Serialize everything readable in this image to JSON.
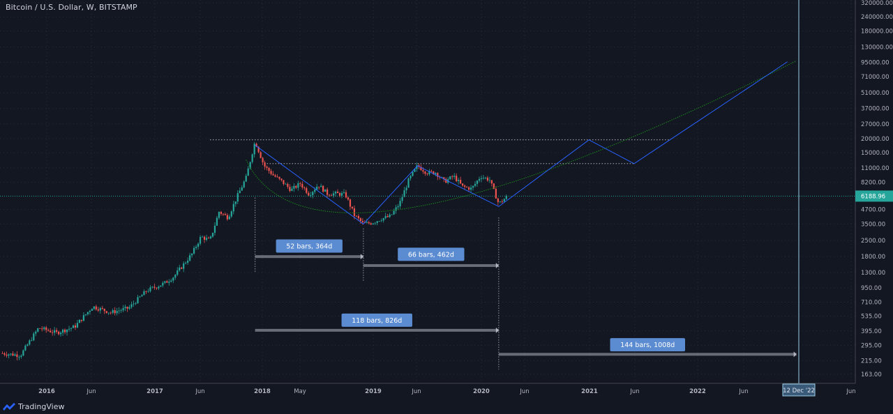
{
  "header": {
    "title": "Bitcoin / U.S. Dollar, W, BITSTAMP"
  },
  "brand": {
    "name": "TradingView"
  },
  "colors": {
    "background": "#131722",
    "grid": "#2a2e39",
    "up": "#26a69a",
    "down": "#ef5350",
    "projection": "#2962ff",
    "curve": "#1b8a1b",
    "price_line": "#26a69a",
    "label_bg": "#5b8bd0",
    "measure_bar": "#787b86",
    "axis_text": "#b2b5be",
    "cursor": "#9ccfe8"
  },
  "chart_data": {
    "type": "candlestick",
    "y_scale": "log",
    "x_ticks": [
      "2016",
      "Jun",
      "2017",
      "Jun",
      "2018",
      "May",
      "2019",
      "Jun",
      "2020",
      "Jun",
      "2021",
      "Jun",
      "2022",
      "Jun",
      "Jun"
    ],
    "y_ticks": [
      "320000.00",
      "240000.00",
      "180000.00",
      "130000.00",
      "95000.00",
      "71000.00",
      "51000.00",
      "37000.00",
      "27000.00",
      "20000.00",
      "15000.00",
      "11000.00",
      "8200.00",
      "6188.96",
      "4700.00",
      "3500.00",
      "2500.00",
      "1800.00",
      "1300.00",
      "950.00",
      "710.00",
      "535.00",
      "395.00",
      "295.00",
      "215.00",
      "163.00"
    ],
    "last_price": {
      "value": 6188.96,
      "label": "6188.96"
    },
    "cursor_date": {
      "label": "12 Dec '22"
    },
    "price_path": [
      [
        "2015-08",
        250
      ],
      [
        "2015-10",
        240
      ],
      [
        "2015-12",
        420
      ],
      [
        "2016-02",
        380
      ],
      [
        "2016-04",
        430
      ],
      [
        "2016-06",
        650
      ],
      [
        "2016-08",
        575
      ],
      [
        "2016-10",
        630
      ],
      [
        "2016-12",
        900
      ],
      [
        "2017-02",
        1050
      ],
      [
        "2017-03",
        1200
      ],
      [
        "2017-05",
        1900
      ],
      [
        "2017-06",
        2700
      ],
      [
        "2017-07",
        2500
      ],
      [
        "2017-08",
        4500
      ],
      [
        "2017-09",
        4000
      ],
      [
        "2017-10",
        6100
      ],
      [
        "2017-11",
        9000
      ],
      [
        "2017-12",
        19000
      ],
      [
        "2018-01",
        11500
      ],
      [
        "2018-02",
        9500
      ],
      [
        "2018-03",
        8300
      ],
      [
        "2018-04",
        7000
      ],
      [
        "2018-05",
        8000
      ],
      [
        "2018-06",
        6400
      ],
      [
        "2018-07",
        7800
      ],
      [
        "2018-08",
        6500
      ],
      [
        "2018-09",
        6500
      ],
      [
        "2018-10",
        6400
      ],
      [
        "2018-11",
        4200
      ],
      [
        "2018-12",
        3500
      ],
      [
        "2019-01",
        3600
      ],
      [
        "2019-02",
        3900
      ],
      [
        "2019-03",
        4100
      ],
      [
        "2019-04",
        5300
      ],
      [
        "2019-05",
        8500
      ],
      [
        "2019-06",
        11500
      ],
      [
        "2019-07",
        10000
      ],
      [
        "2019-08",
        10000
      ],
      [
        "2019-09",
        8300
      ],
      [
        "2019-10",
        9300
      ],
      [
        "2019-11",
        7500
      ],
      [
        "2019-12",
        7200
      ],
      [
        "2020-01",
        9300
      ],
      [
        "2020-02",
        8600
      ],
      [
        "2020-03",
        5300
      ],
      [
        "2020-04",
        6188.96
      ]
    ],
    "projection_path": [
      [
        "2017-12",
        17500
      ],
      [
        "2018-12",
        3500
      ],
      [
        "2019-06",
        11500
      ],
      [
        "2020-03",
        5000
      ],
      [
        "2021-01",
        19500
      ],
      [
        "2021-06",
        12000
      ],
      [
        "2022-11",
        96000
      ]
    ],
    "projection_curve": {
      "start": [
        "2017-11",
        13000
      ],
      "bottom": [
        "2019-06",
        5000
      ],
      "end": [
        "2022-12",
        98000
      ]
    },
    "horizontal_levels": [
      {
        "value": 19500,
        "from": "2017-07",
        "to": "2021-10"
      },
      {
        "value": 12000,
        "from": "2018-01",
        "to": "2021-06"
      }
    ],
    "measurements": [
      {
        "label": "52 bars, 364d",
        "from": "2017-12",
        "to": "2018-12",
        "level": 1800,
        "label_level": 2250
      },
      {
        "label": "66 bars, 462d",
        "from": "2018-12",
        "to": "2020-03",
        "level": 1500,
        "label_level": 1900
      },
      {
        "label": "118 bars, 826d",
        "from": "2017-12",
        "to": "2020-03",
        "level": 400,
        "label_level": 495
      },
      {
        "label": "144 bars, 1008d",
        "from": "2020-03",
        "to": "2022-12",
        "level": 245,
        "label_level": 300
      }
    ],
    "vertical_markers": [
      {
        "date": "2017-12",
        "from": 6000,
        "to": 1300
      },
      {
        "date": "2018-12",
        "from": 3200,
        "to": 1100
      },
      {
        "date": "2020-03",
        "from": 4000,
        "to": 180
      }
    ],
    "title": "",
    "xlabel": "",
    "ylabel": ""
  }
}
